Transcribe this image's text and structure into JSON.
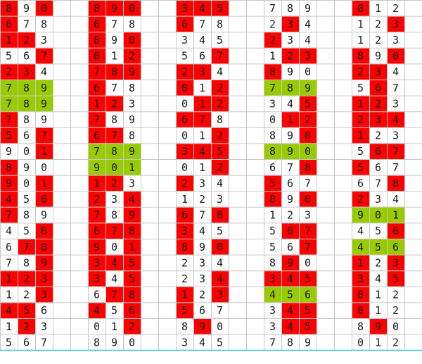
{
  "palette": {
    "r": "#ff0000",
    "g": "#99cc00",
    "w": "#ffffff"
  },
  "rows": [
    [
      "8",
      "9",
      "0",
      "8",
      "9",
      "0",
      "3",
      "4",
      "5",
      "7",
      "8",
      "9",
      "0",
      "1",
      "2"
    ],
    [
      "6",
      "7",
      "8",
      "6",
      "7",
      "8",
      "6",
      "7",
      "8",
      "2",
      "3",
      "4",
      "1",
      "2",
      "3"
    ],
    [
      "1",
      "2",
      "3",
      "8",
      "9",
      "0",
      "3",
      "4",
      "5",
      "2",
      "3",
      "4",
      "1",
      "2",
      "3"
    ],
    [
      "5",
      "6",
      "7",
      "0",
      "1",
      "2",
      "5",
      "6",
      "7",
      "1",
      "2",
      "3",
      "8",
      "9",
      "0"
    ],
    [
      "2",
      "3",
      "4",
      "7",
      "8",
      "9",
      "2",
      "3",
      "4",
      "8",
      "9",
      "0",
      "2",
      "3",
      "4"
    ],
    [
      "7",
      "8",
      "9",
      "6",
      "7",
      "8",
      "0",
      "1",
      "2",
      "7",
      "8",
      "9",
      "5",
      "6",
      "7"
    ],
    [
      "7",
      "8",
      "9",
      "1",
      "2",
      "3",
      "0",
      "1",
      "2",
      "3",
      "4",
      "5",
      "1",
      "2",
      "3"
    ],
    [
      "7",
      "8",
      "9",
      "7",
      "8",
      "9",
      "6",
      "7",
      "8",
      "0",
      "1",
      "2",
      "2",
      "3",
      "4"
    ],
    [
      "5",
      "6",
      "7",
      "6",
      "7",
      "8",
      "0",
      "1",
      "2",
      "8",
      "9",
      "0",
      "1",
      "2",
      "3"
    ],
    [
      "9",
      "0",
      "1",
      "7",
      "8",
      "9",
      "3",
      "4",
      "5",
      "8",
      "9",
      "0",
      "5",
      "6",
      "7"
    ],
    [
      "8",
      "9",
      "0",
      "9",
      "0",
      "1",
      "0",
      "1",
      "2",
      "6",
      "7",
      "8",
      "5",
      "6",
      "7"
    ],
    [
      "9",
      "0",
      "1",
      "1",
      "2",
      "3",
      "2",
      "3",
      "4",
      "5",
      "6",
      "7",
      "6",
      "7",
      "8"
    ],
    [
      "4",
      "5",
      "6",
      "2",
      "3",
      "4",
      "1",
      "2",
      "3",
      "8",
      "9",
      "0",
      "2",
      "3",
      "4"
    ],
    [
      "7",
      "8",
      "9",
      "7",
      "8",
      "9",
      "6",
      "7",
      "8",
      "1",
      "2",
      "3",
      "9",
      "0",
      "1"
    ],
    [
      "4",
      "5",
      "6",
      "6",
      "7",
      "8",
      "3",
      "4",
      "5",
      "5",
      "6",
      "7",
      "4",
      "5",
      "6"
    ],
    [
      "6",
      "7",
      "8",
      "9",
      "0",
      "1",
      "8",
      "9",
      "0",
      "5",
      "6",
      "7",
      "4",
      "5",
      "6"
    ],
    [
      "7",
      "8",
      "9",
      "3",
      "4",
      "5",
      "2",
      "3",
      "4",
      "8",
      "9",
      "0",
      "1",
      "2",
      "3"
    ],
    [
      "1",
      "2",
      "3",
      "3",
      "4",
      "5",
      "2",
      "3",
      "4",
      "3",
      "4",
      "5",
      "3",
      "4",
      "5"
    ],
    [
      "1",
      "2",
      "3",
      "6",
      "7",
      "8",
      "1",
      "2",
      "3",
      "4",
      "5",
      "6",
      "0",
      "1",
      "2"
    ],
    [
      "4",
      "5",
      "6",
      "4",
      "5",
      "6",
      "5",
      "6",
      "7",
      "3",
      "4",
      "5",
      "0",
      "1",
      "2"
    ],
    [
      "1",
      "2",
      "3",
      "0",
      "1",
      "2",
      "8",
      "9",
      "0",
      "3",
      "4",
      "5",
      "8",
      "9",
      "0"
    ],
    [
      "5",
      "6",
      "7",
      "8",
      "9",
      "0",
      "3",
      "4",
      "5",
      "7",
      "8",
      "9",
      "0",
      "1",
      "2"
    ]
  ],
  "fills": [
    "rwrrrrrrrwwwrww",
    "rwwrwwrwwwrwwwr",
    "rrwrwrwwwrwwwww",
    "wwrrwrwwrwrrrwr",
    "rrwrrrrrwrwwrrw",
    "gggrwwrwrgggwrw",
    "gggrrwwrrwwrrrw",
    "rwwrwwrrwwrrrrr",
    "rwrrrwwwrwwrrww",
    "wwrgggrrrgggwrr",
    "rwwgggwwrwwrrww",
    "rwrrrwrwwrwwwwr",
    "rwrrwrwwwrwrrww",
    "rwwrwrrwrwwwggg",
    "wwrrrrrwwwrrwwr",
    "wrrrwrrwrwwrggg",
    "wwrrrrwwwwrwrwr",
    "rrrrwrwwrrrrrwr",
    "wwrwrrrwrgggrww",
    "rrwrwrrwwwrrrww",
    "wrwwwrwrwwrrwrw",
    "wwwwwwwwwwwwwww"
  ]
}
